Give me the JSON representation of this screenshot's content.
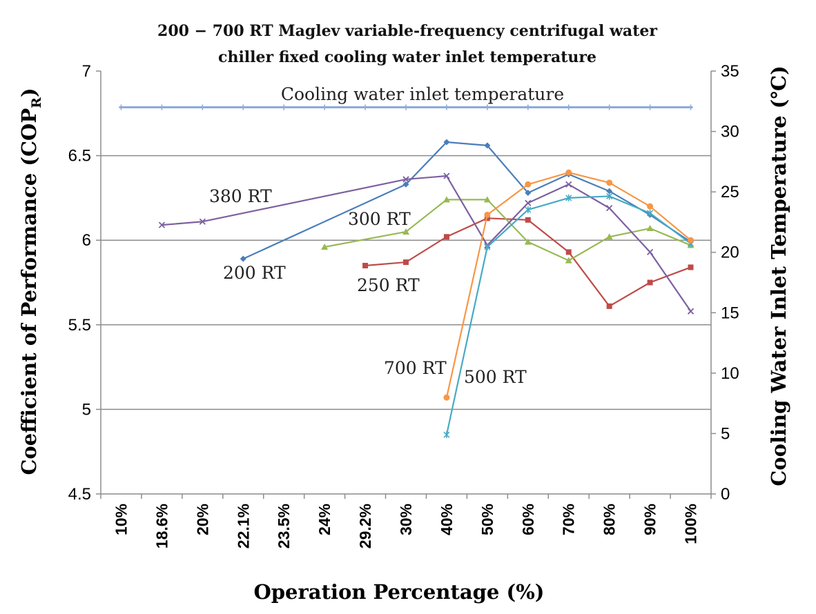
{
  "chart_data": {
    "type": "line",
    "title_lines": [
      "200 − 700 RT Maglev variable-frequency centrifugal water",
      "chiller fixed cooling water inlet temperature"
    ],
    "xlabel": "Operation Percentage (%)",
    "ylabel_left_prefix": "Coefficient of Performance (COP",
    "ylabel_left_sub": "R",
    "ylabel_left_suffix": ")",
    "ylabel_right": "Cooling Water Inlet Temperature (℃)",
    "categories": [
      "10%",
      "18.6%",
      "20%",
      "22.1%",
      "23.5%",
      "24%",
      "29.2%",
      "30%",
      "40%",
      "50%",
      "60%",
      "70%",
      "80%",
      "90%",
      "100%"
    ],
    "y_left": {
      "min": 4.5,
      "max": 7,
      "ticks": [
        "4.5",
        "5",
        "5.5",
        "6",
        "6.5",
        "7"
      ]
    },
    "y_right": {
      "min": 0,
      "max": 35,
      "ticks": [
        "0",
        "5",
        "10",
        "15",
        "20",
        "25",
        "30",
        "35"
      ]
    },
    "gridlines": [
      5,
      5.5,
      6,
      6.5
    ],
    "series": [
      {
        "name": "Cooling water inlet temperature",
        "axis": "right",
        "color": "#8eaadb",
        "marker": "plus",
        "values": [
          32,
          32,
          32,
          32,
          32,
          32,
          32,
          32,
          32,
          32,
          32,
          32,
          32,
          32,
          32
        ]
      },
      {
        "name": "200 RT",
        "axis": "left",
        "color": "#4a7ebb",
        "marker": "diamond",
        "values": [
          null,
          null,
          null,
          5.89,
          null,
          null,
          null,
          6.33,
          6.58,
          6.56,
          6.28,
          6.39,
          6.29,
          6.15,
          5.99
        ]
      },
      {
        "name": "250 RT",
        "axis": "left",
        "color": "#be4b48",
        "marker": "square",
        "values": [
          null,
          null,
          null,
          null,
          null,
          null,
          5.85,
          5.87,
          6.02,
          6.13,
          6.12,
          5.93,
          5.61,
          5.75,
          5.84
        ]
      },
      {
        "name": "300 RT",
        "axis": "left",
        "color": "#98b954",
        "marker": "triangle",
        "values": [
          null,
          null,
          null,
          null,
          null,
          5.96,
          null,
          6.05,
          6.24,
          6.24,
          5.99,
          5.88,
          6.02,
          6.07,
          5.97
        ]
      },
      {
        "name": "380 RT",
        "axis": "left",
        "color": "#7d60a0",
        "marker": "x",
        "values": [
          null,
          6.09,
          6.11,
          null,
          null,
          null,
          null,
          6.36,
          6.38,
          5.97,
          6.22,
          6.33,
          6.19,
          5.93,
          5.58
        ]
      },
      {
        "name": "500 RT",
        "axis": "left",
        "color": "#46aac5",
        "marker": "star",
        "values": [
          null,
          null,
          null,
          null,
          null,
          null,
          null,
          null,
          4.85,
          5.96,
          6.18,
          6.25,
          6.26,
          6.16,
          5.98
        ]
      },
      {
        "name": "700 RT",
        "axis": "left",
        "color": "#f79646",
        "marker": "circle",
        "values": [
          null,
          null,
          null,
          null,
          null,
          null,
          null,
          null,
          5.07,
          6.15,
          6.33,
          6.4,
          6.34,
          6.2,
          6.0
        ]
      }
    ],
    "annotations": [
      {
        "text": "Cooling water inlet temperature",
        "series": "Cooling water inlet temperature"
      },
      {
        "text": "380 RT",
        "series": "380 RT"
      },
      {
        "text": "300 RT",
        "series": "300 RT"
      },
      {
        "text": "200 RT",
        "series": "200 RT"
      },
      {
        "text": "250 RT",
        "series": "250 RT"
      },
      {
        "text": "700 RT",
        "series": "700 RT"
      },
      {
        "text": "500 RT",
        "series": "500 RT"
      }
    ]
  }
}
